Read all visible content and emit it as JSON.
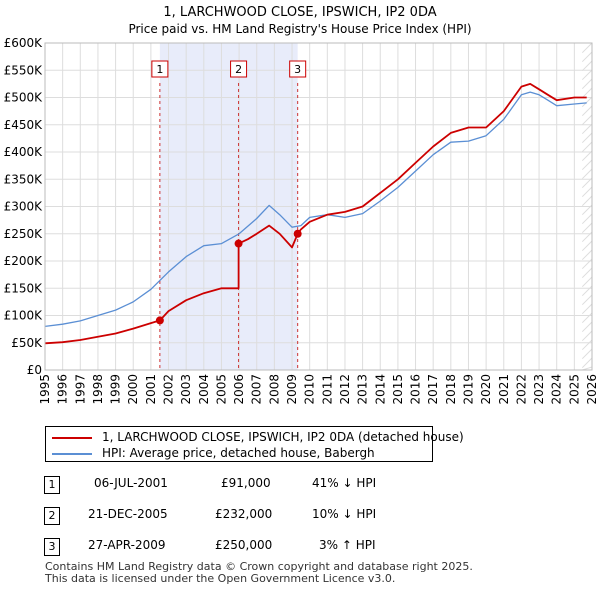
{
  "chart_data": {
    "type": "line",
    "title": "1, LARCHWOOD CLOSE, IPSWICH, IP2 0DA",
    "subtitle": "Price paid vs. HM Land Registry's House Price Index (HPI)",
    "xlim": [
      1995,
      2026
    ],
    "ylim": [
      0,
      600000
    ],
    "x_ticks": [
      "1995",
      "1996",
      "1997",
      "1998",
      "1999",
      "2000",
      "2001",
      "2002",
      "2003",
      "2004",
      "2005",
      "2006",
      "2007",
      "2008",
      "2009",
      "2010",
      "2011",
      "2012",
      "2013",
      "2014",
      "2015",
      "2016",
      "2017",
      "2018",
      "2019",
      "2020",
      "2021",
      "2022",
      "2023",
      "2024",
      "2025",
      "2026"
    ],
    "y_ticks": [
      {
        "value": 0,
        "label": "£0"
      },
      {
        "value": 50000,
        "label": "£50K"
      },
      {
        "value": 100000,
        "label": "£100K"
      },
      {
        "value": 150000,
        "label": "£150K"
      },
      {
        "value": 200000,
        "label": "£200K"
      },
      {
        "value": 250000,
        "label": "£250K"
      },
      {
        "value": 300000,
        "label": "£300K"
      },
      {
        "value": 350000,
        "label": "£350K"
      },
      {
        "value": 400000,
        "label": "£400K"
      },
      {
        "value": 450000,
        "label": "£450K"
      },
      {
        "value": 500000,
        "label": "£500K"
      },
      {
        "value": 550000,
        "label": "£550K"
      },
      {
        "value": 600000,
        "label": "£600K"
      }
    ],
    "shaded_period": [
      2001.51,
      2009.32
    ],
    "series": [
      {
        "name": "HPI: Average price, detached house, Babergh",
        "color": "#5b8fd4",
        "x": [
          1995,
          1996,
          1997,
          1998,
          1999,
          2000,
          2001,
          2002,
          2003,
          2004,
          2005,
          2006,
          2007,
          2007.7,
          2008.3,
          2009,
          2009.5,
          2010,
          2011,
          2012,
          2013,
          2014,
          2015,
          2016,
          2017,
          2018,
          2019,
          2020,
          2021,
          2022,
          2022.5,
          2023,
          2023.5,
          2024,
          2025,
          2025.7
        ],
        "y": [
          80000,
          84000,
          90000,
          100000,
          110000,
          125000,
          148000,
          180000,
          208000,
          228000,
          232000,
          250000,
          278000,
          302000,
          285000,
          262000,
          265000,
          280000,
          285000,
          280000,
          287000,
          310000,
          335000,
          365000,
          395000,
          418000,
          420000,
          430000,
          460000,
          505000,
          510000,
          505000,
          495000,
          485000,
          488000,
          490000
        ]
      },
      {
        "name": "1, LARCHWOOD CLOSE, IPSWICH, IP2 0DA (detached house)",
        "color": "#cc0000",
        "x": [
          1995,
          1996,
          1997,
          1998,
          1999,
          2000,
          2001,
          2001.51,
          2002,
          2003,
          2004,
          2005,
          2005.97,
          2005.97,
          2006.5,
          2007,
          2007.7,
          2008.3,
          2009,
          2009.32,
          2009.5,
          2010,
          2011,
          2012,
          2013,
          2014,
          2015,
          2016,
          2017,
          2018,
          2019,
          2020,
          2021,
          2022,
          2022.5,
          2023,
          2023.5,
          2024,
          2025,
          2025.7
        ],
        "y": [
          49000,
          51000,
          55000,
          61000,
          67000,
          76000,
          86000,
          91000,
          108000,
          128000,
          141000,
          150000,
          150000,
          232000,
          240000,
          250000,
          265000,
          250000,
          225000,
          250000,
          258000,
          272000,
          285000,
          290000,
          300000,
          325000,
          350000,
          380000,
          410000,
          435000,
          445000,
          445000,
          475000,
          520000,
          525000,
          515000,
          505000,
          495000,
          500000,
          500000
        ]
      }
    ],
    "transactions": [
      {
        "id": "1",
        "date": "06-JUL-2001",
        "x": 2001.51,
        "price": "£91,000",
        "value": 91000,
        "hpi": "41% ↓ HPI"
      },
      {
        "id": "2",
        "date": "21-DEC-2005",
        "x": 2005.97,
        "price": "£232,000",
        "value": 232000,
        "hpi": "10% ↓ HPI"
      },
      {
        "id": "3",
        "date": "27-APR-2009",
        "x": 2009.32,
        "price": "£250,000",
        "value": 250000,
        "hpi": "3% ↑ HPI"
      }
    ],
    "legend": {
      "property": "1, LARCHWOOD CLOSE, IPSWICH, IP2 0DA (detached house)",
      "hpi": "HPI: Average price, detached house, Babergh"
    }
  },
  "footer": {
    "line1": "Contains HM Land Registry data © Crown copyright and database right 2025.",
    "line2": "This data is licensed under the Open Government Licence v3.0."
  }
}
